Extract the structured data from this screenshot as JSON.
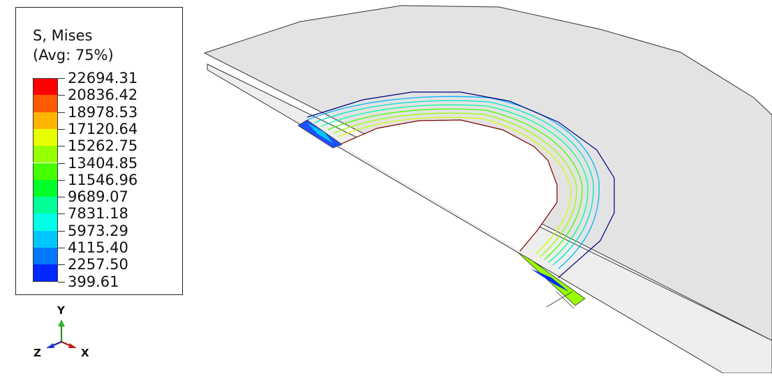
{
  "legend": {
    "title_line1": "S, Mises",
    "title_line2": "(Avg: 75%)",
    "levels": [
      "22694.31",
      "20836.42",
      "18978.53",
      "17120.64",
      "15262.75",
      "13404.85",
      "11546.96",
      "9689.07",
      "7831.18",
      "5973.29",
      "4115.40",
      "2257.50",
      "399.61"
    ],
    "colors": [
      "#ff0000",
      "#ff5a00",
      "#ffb400",
      "#e6ff00",
      "#96ff00",
      "#46ff00",
      "#00ff28",
      "#00ff96",
      "#00ffe6",
      "#00c8ff",
      "#0078ff",
      "#0028ff"
    ]
  },
  "triad": {
    "y_label": "Y",
    "z_label": "Z",
    "x_label": "X"
  },
  "colors": {
    "plate_fill": "#e3e3e3",
    "edge_dark": "#333333",
    "inner_edge": "#7a0000",
    "outer_edge": "#00007a"
  }
}
